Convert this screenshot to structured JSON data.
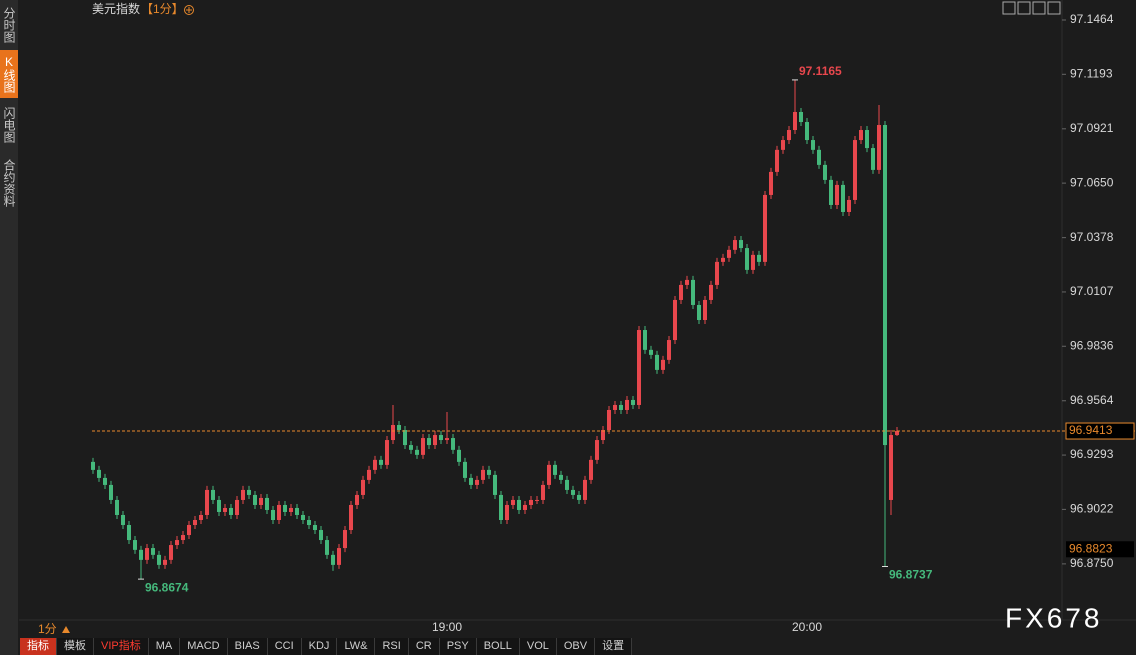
{
  "ui": {
    "title": "美元指数",
    "period": "【1分】",
    "period_selector": "1分",
    "tabs": [
      "分时图",
      "K线图",
      "闪电图",
      "合约资料"
    ],
    "toolbar": [
      "指标",
      "模板",
      "VIP指标",
      "MA",
      "MACD",
      "BIAS",
      "CCI",
      "KDJ",
      "LW&",
      "RSI",
      "CR",
      "PSY",
      "BOLL",
      "VOL",
      "OBV",
      "设置"
    ],
    "watermark": "FX678"
  },
  "chart_data": {
    "type": "candlestick",
    "up_color": "#e8474d",
    "down_color": "#45b97c",
    "price_line_color": "#e8892c",
    "ylim": [
      96.847,
      97.1464
    ],
    "yticks": [
      97.1464,
      97.1193,
      97.0921,
      {
        "value": 97.065,
        "label": "97.0650"
      },
      97.0378,
      97.0107,
      96.9836,
      96.9564,
      96.9293,
      96.9022,
      {
        "value": 96.875,
        "label": "96.8750"
      }
    ],
    "reference_price": 96.8823,
    "categories": [
      null,
      null,
      null,
      null,
      null,
      null,
      null,
      null,
      null,
      null,
      null,
      null,
      null,
      null,
      null,
      null,
      null,
      null,
      null,
      null,
      null,
      null,
      null,
      null,
      null,
      null,
      null,
      null,
      null,
      null,
      null,
      null,
      null,
      null,
      null,
      null,
      null,
      null,
      null,
      null,
      null,
      null,
      null,
      null,
      null,
      null,
      null,
      null,
      null,
      null,
      null,
      null,
      null,
      null,
      null,
      null,
      null,
      null,
      null,
      "19:00",
      null,
      null,
      null,
      null,
      null,
      null,
      null,
      null,
      null,
      null,
      null,
      null,
      null,
      null,
      null,
      null,
      null,
      null,
      null,
      null,
      null,
      null,
      null,
      null,
      null,
      null,
      null,
      null,
      null,
      null,
      null,
      null,
      null,
      null,
      null,
      null,
      null,
      null,
      null,
      null,
      null,
      null,
      null,
      null,
      null,
      null,
      null,
      null,
      null,
      null,
      null,
      null,
      null,
      null,
      null,
      null,
      null,
      null,
      null,
      "20:00",
      null,
      null,
      null,
      null,
      null,
      null,
      null,
      null,
      null,
      null,
      null,
      null,
      null,
      null,
      null
    ],
    "ohlc": [
      [
        96.9259,
        96.9279,
        96.9199,
        96.9219
      ],
      [
        96.9219,
        96.9239,
        96.9159,
        96.9179
      ],
      [
        96.9179,
        96.9199,
        96.9124,
        96.9144
      ],
      [
        96.9144,
        96.9164,
        96.9049,
        96.9069
      ],
      [
        96.9069,
        96.9089,
        96.8974,
        96.8994
      ],
      [
        96.8994,
        96.9014,
        96.8924,
        96.8944
      ],
      [
        96.8944,
        96.8964,
        96.8849,
        96.8869
      ],
      [
        96.8869,
        96.8889,
        96.88,
        96.882
      ],
      [
        96.882,
        96.884,
        96.8674,
        96.877
      ],
      [
        96.877,
        96.8849,
        96.875,
        96.8829
      ],
      [
        96.8829,
        96.8849,
        96.8775,
        96.8795
      ],
      [
        96.8795,
        96.8815,
        96.8725,
        96.8745
      ],
      [
        96.8745,
        96.879,
        96.8725,
        96.877
      ],
      [
        96.877,
        96.8864,
        96.875,
        96.8844
      ],
      [
        96.8844,
        96.8889,
        96.8824,
        96.8869
      ],
      [
        96.8869,
        96.8914,
        96.8849,
        96.8894
      ],
      [
        96.8894,
        96.8964,
        96.8874,
        96.8944
      ],
      [
        96.8944,
        96.8989,
        96.8924,
        96.8969
      ],
      [
        96.8969,
        96.9014,
        96.8949,
        96.8994
      ],
      [
        96.8994,
        96.9139,
        96.8974,
        96.9119
      ],
      [
        96.9119,
        96.9139,
        96.9049,
        96.9069
      ],
      [
        96.9069,
        96.9089,
        96.8989,
        96.9009
      ],
      [
        96.9009,
        96.9049,
        96.8989,
        96.9029
      ],
      [
        96.9029,
        96.9049,
        96.8974,
        96.8994
      ],
      [
        96.8994,
        96.9089,
        96.8974,
        96.9069
      ],
      [
        96.9069,
        96.9139,
        96.9049,
        96.9119
      ],
      [
        96.9119,
        96.9139,
        96.9074,
        96.9094
      ],
      [
        96.9094,
        96.9114,
        96.9024,
        96.9044
      ],
      [
        96.9044,
        96.9099,
        96.9024,
        96.9079
      ],
      [
        96.9079,
        96.9099,
        96.8999,
        96.9019
      ],
      [
        96.9019,
        96.9039,
        96.8949,
        96.8969
      ],
      [
        96.8969,
        96.9064,
        96.8949,
        96.9044
      ],
      [
        96.9044,
        96.9064,
        96.8989,
        96.9009
      ],
      [
        96.9009,
        96.9049,
        96.8989,
        96.9029
      ],
      [
        96.9029,
        96.9049,
        96.8974,
        96.8994
      ],
      [
        96.8994,
        96.9014,
        96.8949,
        96.8969
      ],
      [
        96.8969,
        96.8989,
        96.8924,
        96.8944
      ],
      [
        96.8944,
        96.8964,
        96.8899,
        96.8919
      ],
      [
        96.8919,
        96.8939,
        96.8849,
        96.8869
      ],
      [
        96.8869,
        96.8889,
        96.8775,
        96.8795
      ],
      [
        96.8795,
        96.8815,
        96.8715,
        96.8745
      ],
      [
        96.8745,
        96.8849,
        96.8725,
        96.8829
      ],
      [
        96.8829,
        96.8939,
        96.8809,
        96.8919
      ],
      [
        96.8919,
        96.9064,
        96.8899,
        96.9044
      ],
      [
        96.9044,
        96.9114,
        96.9024,
        96.9094
      ],
      [
        96.9094,
        96.9189,
        96.9074,
        96.9169
      ],
      [
        96.9169,
        96.9239,
        96.9149,
        96.9219
      ],
      [
        96.9219,
        96.9289,
        96.9199,
        96.9269
      ],
      [
        96.9269,
        96.9289,
        96.9224,
        96.9244
      ],
      [
        96.9244,
        96.9388,
        96.9224,
        96.9368
      ],
      [
        96.9368,
        96.9543,
        96.9348,
        96.9443
      ],
      [
        96.9443,
        96.9463,
        96.9398,
        96.9418
      ],
      [
        96.9418,
        96.9438,
        96.9323,
        96.9343
      ],
      [
        96.9343,
        96.9363,
        96.9299,
        96.9319
      ],
      [
        96.9319,
        96.9339,
        96.9274,
        96.9294
      ],
      [
        96.9294,
        96.9398,
        96.9274,
        96.9378
      ],
      [
        96.9378,
        96.9398,
        96.9323,
        96.9343
      ],
      [
        96.9343,
        96.9413,
        96.9323,
        96.9393
      ],
      [
        96.9393,
        96.9413,
        96.9348,
        96.9368
      ],
      [
        96.9368,
        96.9508,
        96.9348,
        96.9378
      ],
      [
        96.9378,
        96.9398,
        96.9299,
        96.9319
      ],
      [
        96.9319,
        96.9339,
        96.9239,
        96.9259
      ],
      [
        96.9259,
        96.9279,
        96.9159,
        96.9179
      ],
      [
        96.9179,
        96.9199,
        96.9124,
        96.9144
      ],
      [
        96.9144,
        96.9189,
        96.9124,
        96.9169
      ],
      [
        96.9169,
        96.9239,
        96.9149,
        96.9219
      ],
      [
        96.9219,
        96.9239,
        96.9174,
        96.9194
      ],
      [
        96.9194,
        96.9214,
        96.9074,
        96.9094
      ],
      [
        96.9094,
        96.9114,
        96.8949,
        96.8969
      ],
      [
        96.8969,
        96.9064,
        96.8949,
        96.9044
      ],
      [
        96.9044,
        96.9089,
        96.9024,
        96.9069
      ],
      [
        96.9069,
        96.9089,
        96.8999,
        96.9019
      ],
      [
        96.9019,
        96.9064,
        96.8999,
        96.9044
      ],
      [
        96.9044,
        96.9089,
        96.9024,
        96.9069
      ],
      [
        96.9069,
        96.9089,
        96.9049,
        96.9069
      ],
      [
        96.9069,
        96.9164,
        96.9049,
        96.9144
      ],
      [
        96.9144,
        96.9264,
        96.9124,
        96.9244
      ],
      [
        96.9244,
        96.9264,
        96.9174,
        96.9194
      ],
      [
        96.9194,
        96.9214,
        96.9149,
        96.9169
      ],
      [
        96.9169,
        96.9189,
        96.9099,
        96.9119
      ],
      [
        96.9119,
        96.9139,
        96.9074,
        96.9094
      ],
      [
        96.9094,
        96.9114,
        96.9049,
        96.9069
      ],
      [
        96.9069,
        96.9189,
        96.9049,
        96.9169
      ],
      [
        96.9169,
        96.9289,
        96.9149,
        96.9269
      ],
      [
        96.9269,
        96.9388,
        96.9249,
        96.9368
      ],
      [
        96.9368,
        96.9438,
        96.9348,
        96.9418
      ],
      [
        96.9418,
        96.9538,
        96.9398,
        96.9518
      ],
      [
        96.9518,
        96.9563,
        96.9498,
        96.9543
      ],
      [
        96.9543,
        96.9563,
        96.9498,
        96.9518
      ],
      [
        96.9518,
        96.9588,
        96.9498,
        96.9568
      ],
      [
        96.9568,
        96.9588,
        96.9523,
        96.9543
      ],
      [
        96.9543,
        96.9937,
        96.9523,
        96.9917
      ],
      [
        96.9917,
        96.9937,
        96.9798,
        96.9818
      ],
      [
        96.9818,
        96.9838,
        96.9773,
        96.9793
      ],
      [
        96.9793,
        96.9813,
        96.9698,
        96.9718
      ],
      [
        96.9718,
        96.9788,
        96.9698,
        96.9768
      ],
      [
        96.9768,
        96.9887,
        96.9748,
        96.9867
      ],
      [
        96.9867,
        97.0087,
        96.9847,
        97.0067
      ],
      [
        97.0067,
        97.0162,
        97.0047,
        97.0142
      ],
      [
        97.0142,
        97.0187,
        97.0122,
        97.0167
      ],
      [
        97.0167,
        97.0187,
        97.0022,
        97.0042
      ],
      [
        97.0042,
        97.0062,
        96.9947,
        96.9967
      ],
      [
        96.9967,
        97.0087,
        96.9947,
        97.0067
      ],
      [
        97.0067,
        97.0162,
        97.0047,
        97.0142
      ],
      [
        97.0142,
        97.0277,
        97.0122,
        97.0257
      ],
      [
        97.0257,
        97.0297,
        97.0237,
        97.0277
      ],
      [
        97.0277,
        97.0337,
        97.0257,
        97.0317
      ],
      [
        97.0317,
        97.0386,
        97.0297,
        97.0366
      ],
      [
        97.0366,
        97.0386,
        97.0306,
        97.0326
      ],
      [
        97.0326,
        97.0346,
        97.0197,
        97.0217
      ],
      [
        97.0217,
        97.0312,
        97.0197,
        97.0292
      ],
      [
        97.0292,
        97.0312,
        97.0237,
        97.0257
      ],
      [
        97.0257,
        97.0611,
        97.0237,
        97.0591
      ],
      [
        97.0591,
        97.0726,
        97.0571,
        97.0706
      ],
      [
        97.0706,
        97.0836,
        97.0686,
        97.0816
      ],
      [
        97.0816,
        97.0885,
        97.0796,
        97.0865
      ],
      [
        97.0865,
        97.0935,
        97.0845,
        97.0915
      ],
      [
        97.0915,
        97.1165,
        97.0895,
        97.1005
      ],
      [
        97.1005,
        97.1025,
        97.0935,
        97.0955
      ],
      [
        97.0955,
        97.0975,
        97.0845,
        97.0865
      ],
      [
        97.0865,
        97.0885,
        97.0796,
        97.0816
      ],
      [
        97.0816,
        97.0836,
        97.0721,
        97.0741
      ],
      [
        97.0741,
        97.0761,
        97.0646,
        97.0666
      ],
      [
        97.0666,
        97.0686,
        97.0521,
        97.0541
      ],
      [
        97.0541,
        97.0661,
        97.0521,
        97.0641
      ],
      [
        97.0641,
        97.0661,
        97.0486,
        97.0506
      ],
      [
        97.0506,
        97.0586,
        97.0486,
        97.0566
      ],
      [
        97.0566,
        97.0885,
        97.0546,
        97.0865
      ],
      [
        97.0865,
        97.0935,
        97.0845,
        97.0915
      ],
      [
        97.0915,
        97.0935,
        97.0805,
        97.0825
      ],
      [
        97.0825,
        97.0845,
        97.0696,
        97.0716
      ],
      [
        97.0716,
        97.104,
        97.0696,
        97.094
      ],
      [
        97.094,
        97.096,
        96.8737,
        96.9343
      ],
      [
        96.9069,
        96.9418,
        96.8994,
        96.9393
      ],
      [
        96.9393,
        96.9433,
        96.9388,
        96.9413
      ]
    ]
  }
}
